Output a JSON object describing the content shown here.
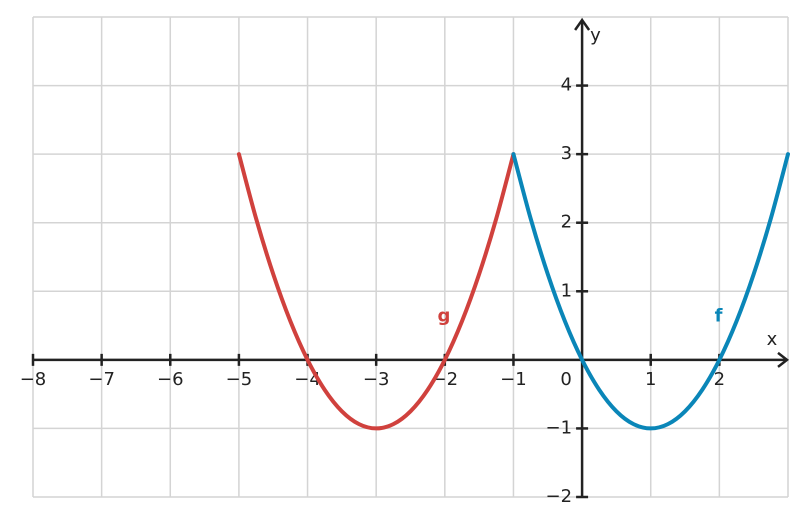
{
  "chart_data": {
    "type": "line",
    "xlim": [
      -8,
      3
    ],
    "ylim": [
      -2,
      5
    ],
    "xlabel": "x",
    "ylabel": "y",
    "grid": true,
    "xticks": [
      {
        "value": -8,
        "label": "−8"
      },
      {
        "value": -7,
        "label": "−7"
      },
      {
        "value": -6,
        "label": "−6"
      },
      {
        "value": -5,
        "label": "−5"
      },
      {
        "value": -4,
        "label": "−4"
      },
      {
        "value": -3,
        "label": "−3"
      },
      {
        "value": -2,
        "label": "−2"
      },
      {
        "value": -1,
        "label": "−1"
      },
      0,
      1,
      2
    ],
    "yticks": [
      {
        "value": -2,
        "label": "−2"
      },
      {
        "value": -1,
        "label": "−1"
      },
      1,
      2,
      3,
      4
    ],
    "series": [
      {
        "name": "g",
        "color": "#d0413d",
        "x": [
          -5,
          -4.75,
          -4.5,
          -4.25,
          -4,
          -3.75,
          -3.5,
          -3.25,
          -3,
          -2.75,
          -2.5,
          -2.25,
          -2,
          -1.75,
          -1.5,
          -1.25,
          -1
        ],
        "values": [
          3,
          2.0625,
          1.25,
          0.5625,
          0,
          -0.4375,
          -0.75,
          -0.9375,
          -1,
          -0.9375,
          -0.75,
          -0.4375,
          0,
          0.5625,
          1.25,
          2.0625,
          3
        ]
      },
      {
        "name": "f",
        "color": "#0a86b8",
        "x": [
          -1,
          -0.75,
          -0.5,
          -0.25,
          0,
          0.25,
          0.5,
          0.75,
          1,
          1.25,
          1.5,
          1.75,
          2,
          2.25,
          2.5,
          2.75,
          3
        ],
        "values": [
          3,
          2.0625,
          1.25,
          0.5625,
          0,
          -0.4375,
          -0.75,
          -0.9375,
          -1,
          -0.9375,
          -0.75,
          -0.4375,
          0,
          0.5625,
          1.25,
          2.0625,
          3
        ]
      }
    ]
  }
}
